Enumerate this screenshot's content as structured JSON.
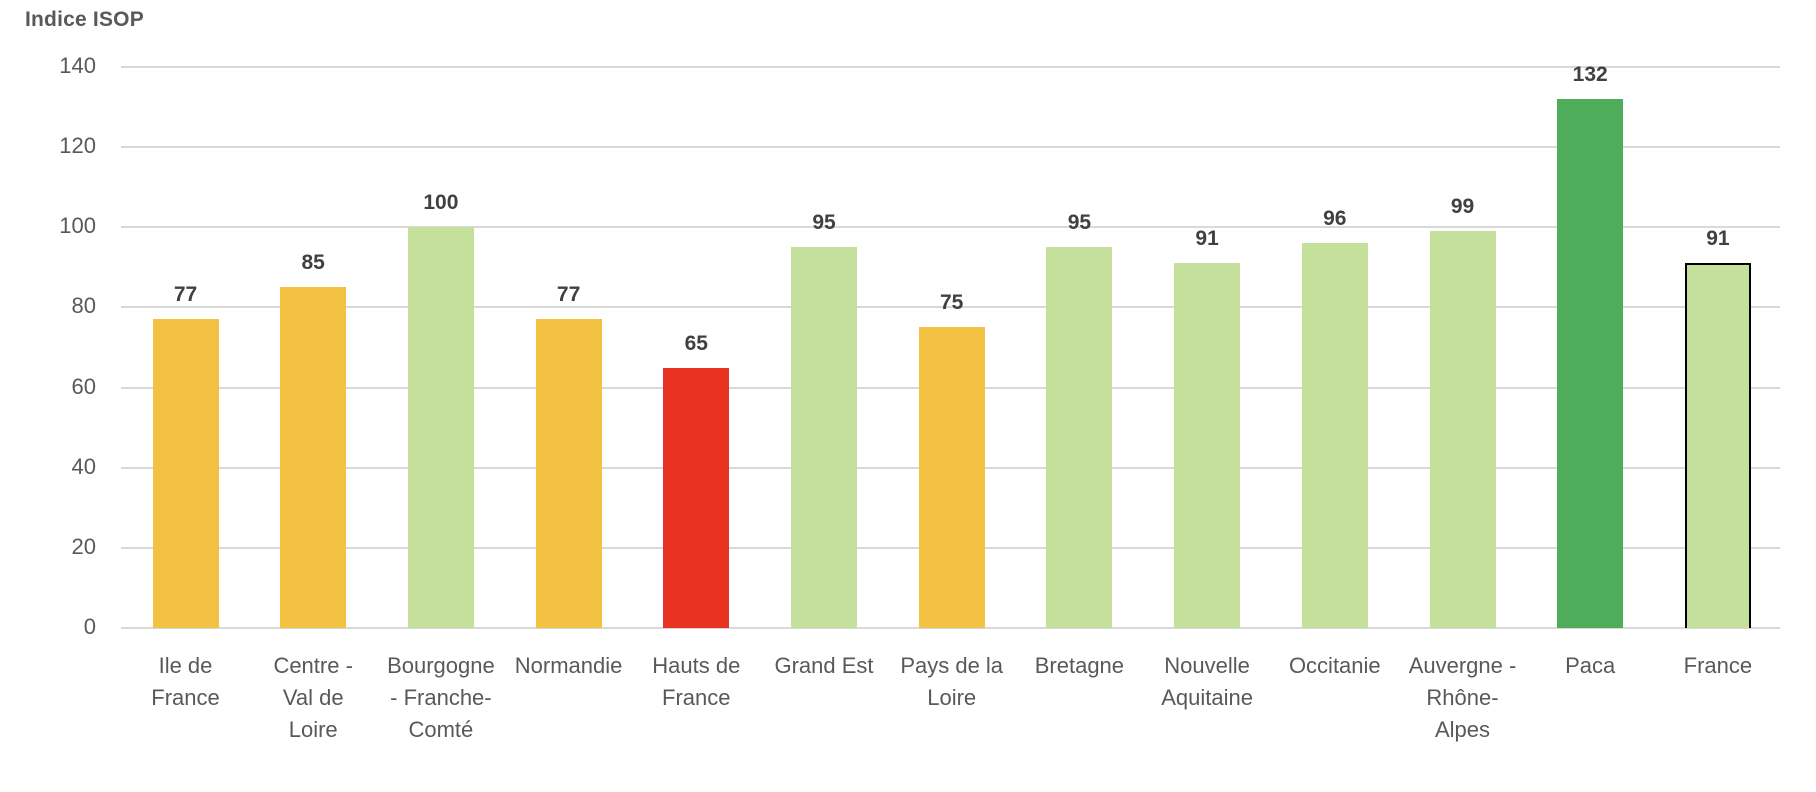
{
  "chart_data": {
    "type": "bar",
    "title": "Indice ISOP",
    "xlabel": "",
    "ylabel": "Indice ISOP",
    "ylim": [
      0,
      140
    ],
    "yticks": [
      0,
      20,
      40,
      60,
      80,
      100,
      120,
      140
    ],
    "grid": true,
    "legend": null,
    "categories": [
      "Ile de France",
      "Centre - Val de Loire",
      "Bourgogne - Franche-Comté",
      "Normandie",
      "Hauts de France",
      "Grand Est",
      "Pays de la Loire",
      "Bretagne",
      "Nouvelle Aquitaine",
      "Occitanie",
      "Auvergne - Rhône-Alpes",
      "Paca",
      "France"
    ],
    "category_display": [
      "Ile de\nFrance",
      "Centre -\nVal de\nLoire",
      "Bourgogne\n- Franche-\nComté",
      "Normandie",
      "Hauts de\nFrance",
      "Grand Est",
      "Pays de la\nLoire",
      "Bretagne",
      "Nouvelle\nAquitaine",
      "Occitanie",
      "Auvergne -\nRhône-\nAlpes",
      "Paca",
      "France"
    ],
    "values": [
      77,
      85,
      100,
      77,
      65,
      95,
      75,
      95,
      91,
      96,
      99,
      132,
      91
    ],
    "data_labels": [
      "77",
      "85",
      "100",
      "77",
      "65",
      "95",
      "75",
      "95",
      "91",
      "96",
      "99",
      "132",
      "91"
    ],
    "bar_colors": [
      "#f3c242",
      "#f3c242",
      "#c4e09b",
      "#f3c242",
      "#e83323",
      "#c4e09b",
      "#f3c242",
      "#c4e09b",
      "#c4e09b",
      "#c4e09b",
      "#c4e09b",
      "#4eac5b",
      "#c4e09b"
    ],
    "highlight_outline": {
      "category": "France",
      "color": "#000000"
    }
  },
  "colors": {
    "orange": "#f3c242",
    "light_green": "#c4e09b",
    "red": "#e83323",
    "dark_green": "#4eac5b",
    "gridline": "#d9d9d9",
    "axis_text": "#595959",
    "label_text": "#404040"
  }
}
